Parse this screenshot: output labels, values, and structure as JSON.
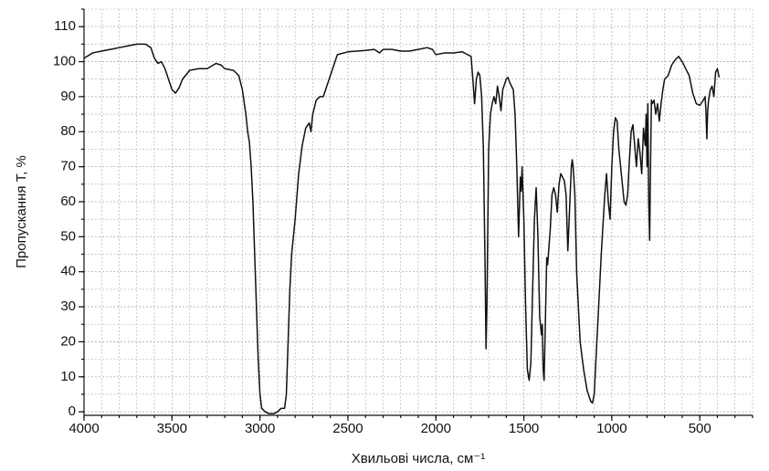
{
  "chart_data": {
    "type": "line",
    "y_label": "Пропускання T, %",
    "x_label": "Хвильові числа, см⁻¹",
    "xlim": [
      4000,
      200
    ],
    "ylim": [
      -1,
      115
    ],
    "xticks": [
      4000,
      3500,
      3000,
      2500,
      2000,
      1500,
      1000,
      500
    ],
    "yticks": [
      0,
      10,
      20,
      30,
      40,
      50,
      60,
      70,
      80,
      90,
      100,
      110
    ],
    "grid": true,
    "minor_grid": {
      "x": 100,
      "y": 5
    },
    "color": "#111111",
    "x": [
      4000,
      3950,
      3900,
      3850,
      3800,
      3750,
      3700,
      3650,
      3620,
      3600,
      3580,
      3560,
      3540,
      3520,
      3500,
      3480,
      3460,
      3440,
      3400,
      3350,
      3300,
      3250,
      3220,
      3200,
      3150,
      3120,
      3100,
      3080,
      3070,
      3060,
      3050,
      3040,
      3030,
      3020,
      3010,
      3000,
      2990,
      2970,
      2950,
      2920,
      2900,
      2880,
      2860,
      2850,
      2840,
      2830,
      2820,
      2800,
      2780,
      2760,
      2740,
      2720,
      2710,
      2700,
      2680,
      2660,
      2640,
      2620,
      2600,
      2580,
      2560,
      2500,
      2450,
      2400,
      2350,
      2320,
      2300,
      2250,
      2200,
      2150,
      2100,
      2050,
      2020,
      2000,
      1950,
      1900,
      1850,
      1820,
      1800,
      1790,
      1780,
      1770,
      1760,
      1750,
      1740,
      1730,
      1720,
      1715,
      1710,
      1700,
      1690,
      1680,
      1670,
      1660,
      1650,
      1640,
      1630,
      1620,
      1600,
      1590,
      1580,
      1560,
      1550,
      1540,
      1530,
      1520,
      1515,
      1510,
      1500,
      1490,
      1480,
      1470,
      1460,
      1450,
      1440,
      1430,
      1420,
      1410,
      1400,
      1395,
      1390,
      1385,
      1380,
      1370,
      1365,
      1350,
      1340,
      1330,
      1320,
      1310,
      1300,
      1290,
      1280,
      1270,
      1260,
      1250,
      1240,
      1230,
      1225,
      1220,
      1210,
      1200,
      1180,
      1160,
      1140,
      1120,
      1110,
      1100,
      1080,
      1060,
      1040,
      1030,
      1020,
      1010,
      1000,
      990,
      980,
      970,
      960,
      940,
      930,
      920,
      910,
      900,
      890,
      880,
      870,
      860,
      850,
      840,
      830,
      820,
      810,
      805,
      800,
      795,
      790,
      785,
      780,
      775,
      770,
      760,
      750,
      740,
      730,
      720,
      710,
      700,
      680,
      660,
      640,
      620,
      600,
      580,
      560,
      540,
      520,
      500,
      480,
      470,
      465,
      460,
      455,
      450,
      440,
      430,
      420,
      410,
      400,
      390
    ],
    "values": [
      101,
      102.5,
      103,
      103.5,
      104,
      104.5,
      105,
      105,
      104,
      101,
      99.5,
      100,
      98,
      95,
      92,
      91,
      92.5,
      95,
      97.5,
      98,
      98,
      99.5,
      99,
      98,
      97.5,
      96,
      92,
      85,
      80,
      77,
      70,
      60,
      45,
      30,
      15,
      5,
      1,
      0,
      -0.5,
      -0.5,
      0,
      1,
      1,
      5,
      20,
      35,
      45,
      55,
      68,
      76,
      81,
      82.5,
      80,
      85,
      89,
      90,
      90,
      93,
      96,
      99,
      102,
      102.8,
      103,
      103.2,
      103.5,
      102.5,
      103.5,
      103.5,
      103,
      103,
      103.5,
      104,
      103.5,
      102,
      102.5,
      102.5,
      102.8,
      102,
      101.5,
      95,
      88,
      95,
      97,
      96,
      90,
      75,
      40,
      18,
      30,
      75,
      85,
      88,
      90,
      88,
      93,
      90,
      86,
      92,
      95,
      95.5,
      94,
      92,
      85,
      70,
      50,
      67,
      63,
      70,
      55,
      30,
      12,
      9,
      14,
      35,
      55,
      64,
      50,
      27,
      22,
      25,
      12,
      9,
      20,
      44,
      42,
      52,
      62,
      64,
      62,
      57,
      65,
      68,
      67,
      66,
      62,
      46,
      58,
      70,
      72,
      70,
      62,
      40,
      20,
      12,
      6,
      3,
      2.5,
      5,
      25,
      45,
      62,
      68,
      60,
      55,
      70,
      80,
      84,
      83,
      75,
      65,
      60,
      59,
      62,
      72,
      80,
      82,
      76,
      70,
      78,
      74,
      68,
      81,
      76,
      85,
      70,
      88,
      60,
      49,
      70,
      89,
      88,
      89,
      85,
      88,
      83,
      88,
      92,
      95,
      96,
      99,
      100.5,
      101.5,
      100,
      98,
      96,
      91,
      88,
      87.5,
      89,
      90,
      86,
      78,
      86,
      89,
      92,
      93,
      90,
      97,
      98,
      95.5
    ]
  }
}
